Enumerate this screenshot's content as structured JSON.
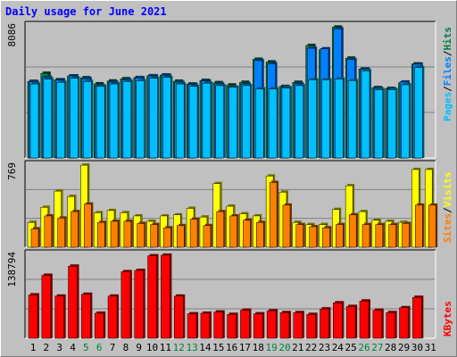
{
  "title": "Daily usage for June 2021",
  "colors": {
    "background": "#C0C0C0",
    "plot": "#C0C0C0",
    "hits": "#008040",
    "files": "#0080FF",
    "pages": "#00C0FF",
    "visits": "#FFFF00",
    "sites": "#FF8000",
    "kbytes": "#FF0000",
    "title": "#0000FF",
    "weekend_day": "#008040",
    "weekday": "#000000"
  },
  "chart_data": [
    {
      "type": "bar",
      "panel": "top",
      "ymax_label": "8086",
      "ylim": [
        0,
        8086
      ],
      "legend_right": [
        "Pages",
        "/",
        "Files",
        "/",
        "Hits"
      ],
      "categories": [
        "1",
        "2",
        "3",
        "4",
        "5",
        "6",
        "7",
        "8",
        "9",
        "10",
        "11",
        "12",
        "13",
        "14",
        "15",
        "16",
        "17",
        "18",
        "19",
        "20",
        "21",
        "22",
        "23",
        "24",
        "25",
        "26",
        "27",
        "28",
        "29",
        "30",
        "31"
      ],
      "series": [
        {
          "name": "Hits",
          "values": [
            4660,
            5150,
            4760,
            4990,
            4880,
            4510,
            4680,
            4820,
            4890,
            5000,
            5050,
            4670,
            4500,
            4720,
            4580,
            4440,
            4600,
            6000,
            5840,
            4350,
            4600,
            6840,
            6580,
            7960,
            6070,
            5410,
            4280,
            4230,
            4570,
            5720,
            null
          ]
        },
        {
          "name": "Files",
          "values": [
            4640,
            4900,
            4740,
            4990,
            4820,
            4400,
            4610,
            4750,
            4870,
            4990,
            5030,
            4600,
            4470,
            4680,
            4500,
            4300,
            4500,
            5920,
            5730,
            4310,
            4510,
            6670,
            6640,
            7850,
            5980,
            5400,
            4230,
            4190,
            4620,
            5700,
            null
          ]
        },
        {
          "name": "Pages",
          "values": [
            4500,
            4800,
            4600,
            4850,
            4650,
            4350,
            4500,
            4650,
            4700,
            4850,
            4900,
            4500,
            4350,
            4550,
            4400,
            4300,
            4400,
            4200,
            4200,
            4250,
            4400,
            4750,
            4750,
            4800,
            4700,
            5300,
            4150,
            4150,
            4450,
            5500,
            null
          ]
        }
      ]
    },
    {
      "type": "bar",
      "panel": "middle",
      "ymax_label": "769",
      "ylim": [
        0,
        769
      ],
      "legend_right": [
        "Sites",
        "/",
        "Visits"
      ],
      "categories": [
        "1",
        "2",
        "3",
        "4",
        "5",
        "6",
        "7",
        "8",
        "9",
        "10",
        "11",
        "12",
        "13",
        "14",
        "15",
        "16",
        "17",
        "18",
        "19",
        "20",
        "21",
        "22",
        "23",
        "24",
        "25",
        "26",
        "27",
        "28",
        "29",
        "30",
        "31"
      ],
      "series": [
        {
          "name": "Visits",
          "values": [
            230,
            370,
            520,
            470,
            760,
            320,
            340,
            320,
            290,
            240,
            290,
            300,
            360,
            280,
            590,
            380,
            310,
            290,
            660,
            510,
            230,
            210,
            210,
            350,
            570,
            330,
            250,
            240,
            230,
            720,
            720
          ]
        },
        {
          "name": "Sites",
          "values": [
            170,
            290,
            270,
            330,
            400,
            230,
            240,
            240,
            220,
            210,
            180,
            200,
            260,
            200,
            330,
            290,
            250,
            230,
            600,
            390,
            210,
            190,
            180,
            210,
            300,
            210,
            210,
            210,
            220,
            390,
            390
          ]
        }
      ]
    },
    {
      "type": "bar",
      "panel": "bottom",
      "ymax_label": "138794",
      "ylim": [
        0,
        138794
      ],
      "legend_right": [
        "KBytes"
      ],
      "categories": [
        "1",
        "2",
        "3",
        "4",
        "5",
        "6",
        "7",
        "8",
        "9",
        "10",
        "11",
        "12",
        "13",
        "14",
        "15",
        "16",
        "17",
        "18",
        "19",
        "20",
        "21",
        "22",
        "23",
        "24",
        "25",
        "26",
        "27",
        "28",
        "29",
        "30",
        "31"
      ],
      "series": [
        {
          "name": "KBytes",
          "values": [
            71000,
            103000,
            69000,
            118000,
            72000,
            41000,
            69000,
            109000,
            111000,
            135000,
            136000,
            69000,
            40000,
            41000,
            43000,
            39000,
            46000,
            40000,
            45000,
            42000,
            42000,
            39000,
            48000,
            58000,
            52000,
            61000,
            46000,
            42000,
            50000,
            67000,
            null
          ]
        }
      ]
    }
  ],
  "weekend_days": [
    "5",
    "6",
    "12",
    "13",
    "19",
    "20",
    "26",
    "27"
  ]
}
